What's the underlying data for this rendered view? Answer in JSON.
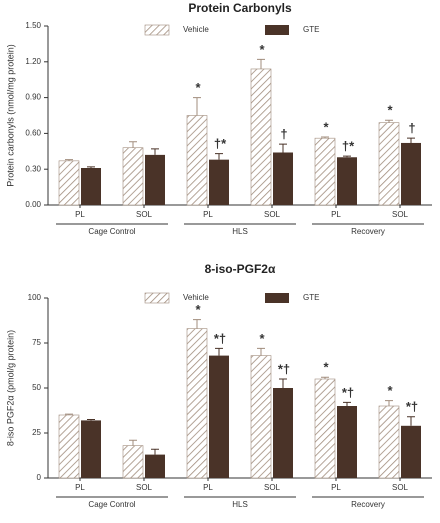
{
  "chart_data": [
    {
      "type": "bar",
      "title": "Protein Carbonyls",
      "y_label": "Protein carbonyls  (nmol/mg protein)",
      "categories": [
        "PL",
        "SOL",
        "PL",
        "SOL",
        "PL",
        "SOL"
      ],
      "groups": [
        "Cage Control",
        "HLS",
        "Recovery"
      ],
      "series": [
        {
          "name": "Vehicle",
          "color": "#a08c7c",
          "hatch": true,
          "values": [
            0.37,
            0.48,
            0.75,
            1.14,
            0.56,
            0.69
          ],
          "errors": [
            0.01,
            0.05,
            0.15,
            0.08,
            0.01,
            0.02
          ],
          "annotations": [
            null,
            null,
            "*",
            "*",
            "*",
            "*"
          ]
        },
        {
          "name": "GTE",
          "color": "#4a3328",
          "hatch": false,
          "values": [
            0.31,
            0.42,
            0.38,
            0.44,
            0.4,
            0.52
          ],
          "errors": [
            0.01,
            0.05,
            0.05,
            0.07,
            0.01,
            0.04
          ],
          "annotations": [
            null,
            null,
            "†*",
            "†",
            "†*",
            "†"
          ]
        }
      ],
      "ylim": [
        0,
        1.5
      ],
      "yticks": [
        {
          "value": 0,
          "label": "0.00"
        },
        {
          "value": 0.3,
          "label": "0.30"
        },
        {
          "value": 0.6,
          "label": "0.60"
        },
        {
          "value": 0.9,
          "label": "0.90"
        },
        {
          "value": 1.2,
          "label": "1.20"
        },
        {
          "value": 1.5,
          "label": "1.50"
        }
      ]
    },
    {
      "type": "bar",
      "title": "8-iso-PGF2α",
      "y_label": "8-iso PGF2α  (pmol/g protein)",
      "categories": [
        "PL",
        "SOL",
        "PL",
        "SOL",
        "PL",
        "SOL"
      ],
      "groups": [
        "Cage Control",
        "HLS",
        "Recovery"
      ],
      "series": [
        {
          "name": "Vehicle",
          "color": "#a08c7c",
          "hatch": true,
          "values": [
            35,
            18,
            83,
            68,
            55,
            40
          ],
          "errors": [
            0.5,
            3,
            5,
            4,
            1,
            3
          ],
          "annotations": [
            null,
            null,
            "*",
            "*",
            "*",
            "*"
          ]
        },
        {
          "name": "GTE",
          "color": "#4a3328",
          "hatch": false,
          "values": [
            32,
            13,
            68,
            50,
            40,
            29
          ],
          "errors": [
            0.5,
            3,
            4,
            5,
            2,
            5
          ],
          "annotations": [
            null,
            null,
            "*†",
            "*†",
            "*†",
            "*†"
          ]
        }
      ],
      "ylim": [
        0,
        100
      ],
      "yticks": [
        0,
        25,
        50,
        75,
        100
      ]
    }
  ]
}
